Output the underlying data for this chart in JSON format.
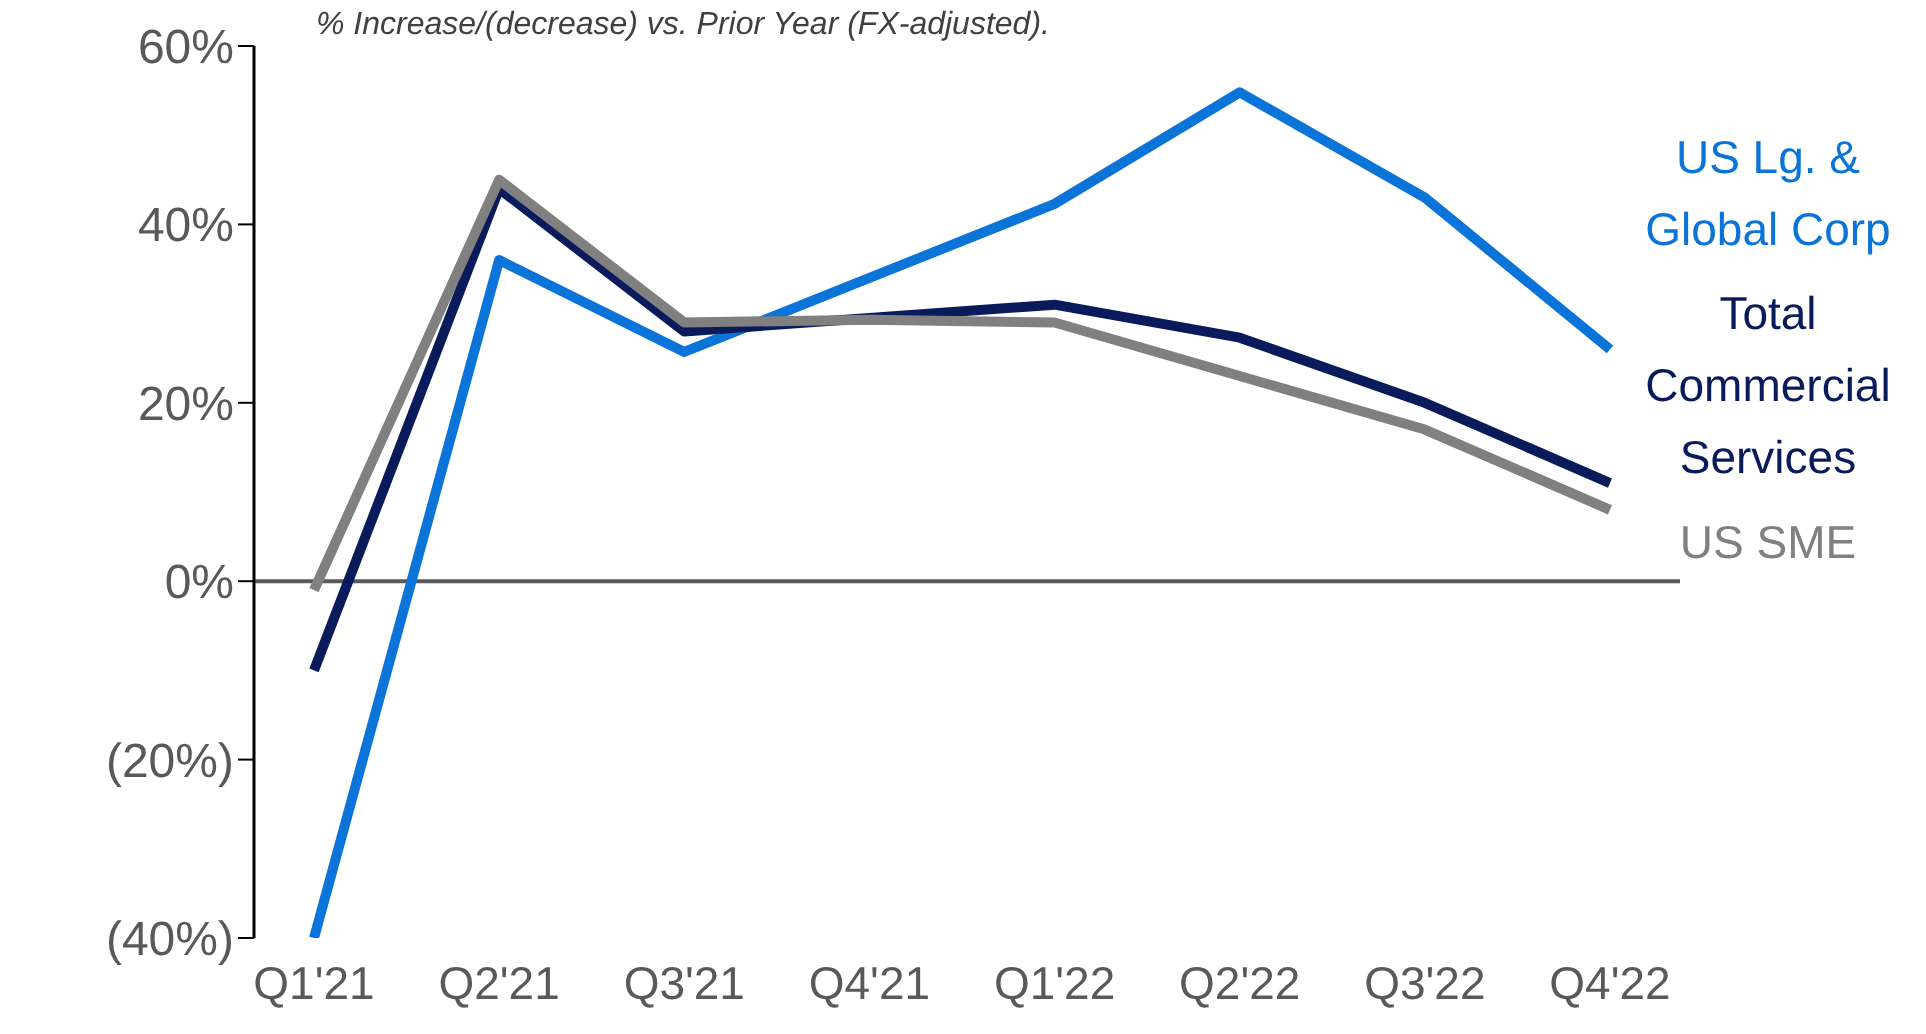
{
  "chart_data": {
    "type": "line",
    "subtitle": "% Increase/(decrease) vs. Prior Year (FX-adjusted).",
    "categories": [
      "Q1'21",
      "Q2'21",
      "Q3'21",
      "Q4'21",
      "Q1'22",
      "Q2'22",
      "Q3'22",
      "Q4'22"
    ],
    "series": [
      {
        "name": "US Lg. & Global Corp",
        "color": "#0a74d8",
        "values": [
          -40,
          36,
          25.7,
          34,
          42.3,
          54.8,
          43,
          26
        ]
      },
      {
        "name": "Total Commercial Services",
        "color": "#0a1b5c",
        "values": [
          -10,
          44,
          28,
          29.5,
          31,
          27.3,
          20,
          11
        ]
      },
      {
        "name": "US SME",
        "color": "#808080",
        "values": [
          -1,
          45,
          29,
          29.3,
          29,
          23,
          17,
          8
        ]
      }
    ],
    "ylim": [
      -40,
      60
    ],
    "yticks": [
      {
        "value": -40,
        "label": "(40%)"
      },
      {
        "value": -20,
        "label": "(20%)"
      },
      {
        "value": 0,
        "label": "0%"
      },
      {
        "value": 20,
        "label": "20%"
      },
      {
        "value": 40,
        "label": "40%"
      },
      {
        "value": 60,
        "label": "60%"
      }
    ],
    "ref_lines": [
      {
        "axis": "y",
        "value": 0,
        "color": "#595959"
      }
    ],
    "grid": false,
    "marker": "none",
    "line_style": "solid"
  }
}
